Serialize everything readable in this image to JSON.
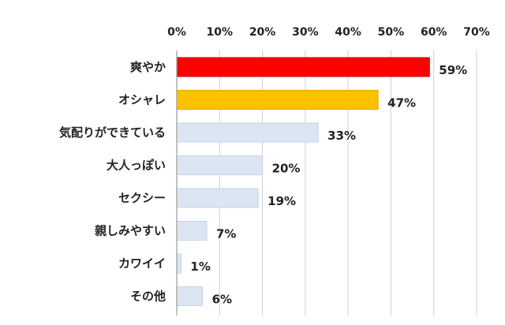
{
  "chart_data": {
    "type": "bar",
    "orientation": "horizontal",
    "categories": [
      "爽やか",
      "オシャレ",
      "気配りができている",
      "大人っぽい",
      "セクシー",
      "親しみやすい",
      "カワイイ",
      "その他"
    ],
    "values": [
      59,
      47,
      33,
      20,
      19,
      7,
      1,
      6
    ],
    "data_labels": [
      "59%",
      "47%",
      "33%",
      "20%",
      "19%",
      "7%",
      "1%",
      "6%"
    ],
    "xlim": [
      0,
      70
    ],
    "ticks": [
      0,
      10,
      20,
      30,
      40,
      50,
      60,
      70
    ],
    "tick_labels": [
      "0%",
      "10%",
      "20%",
      "30%",
      "40%",
      "50%",
      "60%",
      "70%"
    ],
    "tick_position": "top",
    "grid": true,
    "title": "",
    "xlabel": "",
    "ylabel": "",
    "bar_colors": [
      "#ff0000",
      "#ffc000",
      "#dce6f2",
      "#dce6f2",
      "#dce6f2",
      "#dce6f2",
      "#dce6f2",
      "#dce6f2"
    ],
    "bar_border_colors": [
      "#c00000",
      "#e0a800",
      "#c5d3e6",
      "#c5d3e6",
      "#c5d3e6",
      "#c5d3e6",
      "#c5d3e6",
      "#c5d3e6"
    ]
  }
}
